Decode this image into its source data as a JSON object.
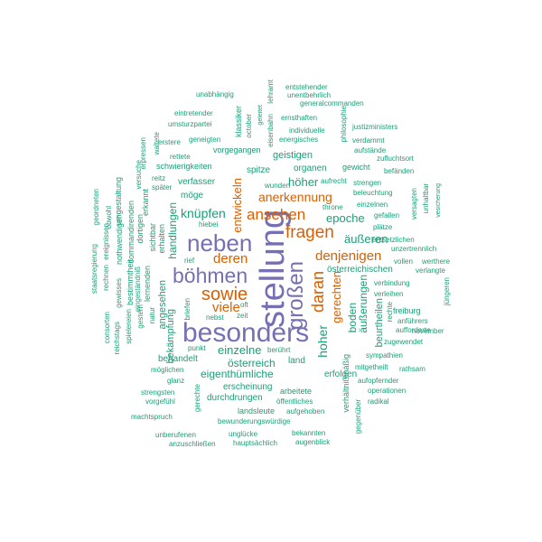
{
  "colors": {
    "purple": "#7570b3",
    "orange": "#d95f02",
    "green": "#1b9e77",
    "background": "#ffffff"
  },
  "words": [
    "stellung",
    "besonders",
    "neben",
    "böhmen",
    "großen",
    "sowie",
    "fragen",
    "daran",
    "ansehen",
    "deren",
    "viele",
    "denjenigen",
    "anerkennung",
    "knüpfen",
    "hoher",
    "gerechten",
    "epoche",
    "äußeren",
    "entwickeln",
    "höher",
    "handlungen",
    "boden",
    "äußerungen",
    "einzelne",
    "eigenthümliche",
    "österreich",
    "österreichischen",
    "landsleute",
    "unabhängig",
    "unentbehrlich",
    "entstehender",
    "generalcommanden",
    "justizministers",
    "lehramt",
    "eintretender",
    "klassiker",
    "eisenbahn",
    "october",
    "geleitet",
    "philosophie",
    "ernsthaften",
    "individuelle",
    "energisches",
    "umsturzpartei",
    "aufstände",
    "verdammt",
    "erstere",
    "geneigten",
    "zufluchtsort",
    "waltete",
    "rettete",
    "vorgegangen",
    "befänden",
    "versuche",
    "schwierigkeiten",
    "geistigen",
    "gewicht",
    "erpressen",
    "organen",
    "reitz",
    "später",
    "verfasser",
    "wunden",
    "strengen",
    "aufrecht",
    "beleuchtung",
    "möge",
    "spitze",
    "unhaltbar",
    "vesicherung",
    "versagten",
    "einzelnen",
    "gefallen",
    "throne",
    "erkannt",
    "hiebei",
    "plätze",
    "staatsregierung",
    "rechnen",
    "ereignissen",
    "obwohl",
    "geordneten",
    "nothwendiger",
    "umgestaltung",
    "commandirenden",
    "dortigen",
    "erhalten",
    "sichtbar",
    "entsetzlichen",
    "unzertrennlich",
    "vollen",
    "werthere",
    "verlangte",
    "jüngeren",
    "gewisses",
    "bestimmtheit",
    "eingeständniß",
    "lernenden",
    "rief",
    "verbindung",
    "verleihen",
    "angesehen",
    "natur",
    "bekämpfung",
    "briefen",
    "zeit",
    "nebst",
    "oft",
    "reichstags",
    "consorten",
    "spielereien",
    "gestern",
    "freiburg",
    "anführers",
    "aufforderte",
    "november",
    "beurtheilen",
    "rechte",
    "zugewendet",
    "sympathien",
    "punkt",
    "behandelt",
    "berührt",
    "land",
    "erfolgen",
    "mitgetheilt",
    "rathsam",
    "möglichen",
    "aufopfernder",
    "glanz",
    "verhältnißmäßig",
    "operationen",
    "strengsten",
    "radikal",
    "vorgefühl",
    "erscheinung",
    "arbeitete",
    "durchdrungen",
    "öffentliches",
    "machtspruch",
    "gerechte",
    "aufgehoben",
    "gegenüber",
    "bewunderungswürdige",
    "unberufenen",
    "unglücke",
    "bekannten",
    "anzuschließen",
    "hauptsächlich",
    "augenblick"
  ]
}
